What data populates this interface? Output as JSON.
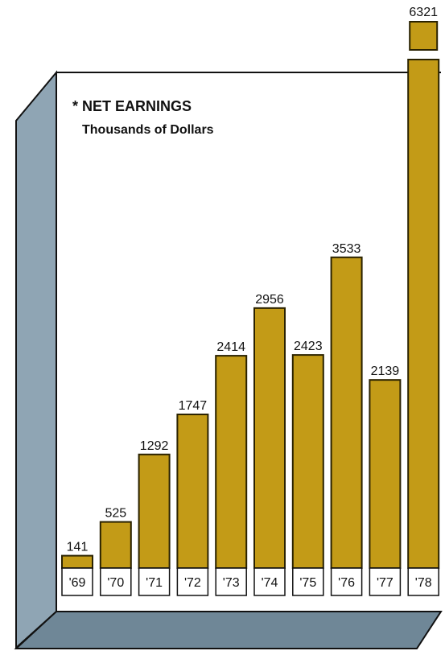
{
  "colors": {
    "bar": "#c39b17",
    "bar_edge": "#2a2200",
    "panel": "#ffffff",
    "side": "#8fa5b4",
    "side_dark": "#6f8797",
    "outline": "#111111"
  },
  "chart_data": {
    "type": "bar",
    "title": "NET EARNINGS",
    "subtitle": "Thousands of Dollars",
    "title_marker": "*",
    "categories": [
      "'69",
      "'70",
      "'71",
      "'72",
      "'73",
      "'74",
      "'75",
      "'76",
      "'77",
      "'78"
    ],
    "values": [
      141,
      525,
      1292,
      1747,
      2414,
      2956,
      2423,
      3533,
      2139,
      6321
    ],
    "value_labels": [
      "141",
      "525",
      "1292",
      "1747",
      "2414",
      "2956",
      "2423",
      "3533",
      "2139",
      "6321"
    ],
    "ylim": [
      0,
      6321
    ],
    "grid": false,
    "legend": "none",
    "note": "last bar breaks through the top of the frame"
  }
}
